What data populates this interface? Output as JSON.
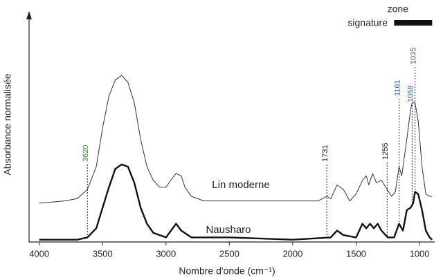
{
  "chart_data": {
    "type": "line",
    "xlabel": "Nombre d'onde (cm⁻¹)",
    "ylabel": "Absorbance normalisée",
    "xlim": [
      4080,
      880
    ],
    "xticks": [
      4000,
      3500,
      3000,
      2500,
      2000,
      1500,
      1000
    ],
    "ylim": [
      0,
      1
    ],
    "x_reversed": true,
    "series": [
      {
        "name": "Lin moderne",
        "color": "#333333",
        "x": [
          4000,
          3800,
          3700,
          3620,
          3550,
          3500,
          3450,
          3400,
          3350,
          3300,
          3250,
          3200,
          3150,
          3100,
          3050,
          3000,
          2950,
          2920,
          2880,
          2850,
          2800,
          2700,
          2500,
          2000,
          1800,
          1731,
          1700,
          1650,
          1600,
          1550,
          1500,
          1450,
          1420,
          1400,
          1370,
          1340,
          1300,
          1255,
          1220,
          1190,
          1161,
          1140,
          1100,
          1070,
          1058,
          1035,
          1010,
          980,
          950,
          920,
          900
        ],
        "values": [
          0.17,
          0.18,
          0.19,
          0.23,
          0.33,
          0.5,
          0.64,
          0.71,
          0.73,
          0.7,
          0.61,
          0.45,
          0.33,
          0.27,
          0.24,
          0.24,
          0.28,
          0.3,
          0.29,
          0.24,
          0.2,
          0.18,
          0.18,
          0.18,
          0.18,
          0.2,
          0.19,
          0.25,
          0.23,
          0.18,
          0.21,
          0.27,
          0.29,
          0.25,
          0.3,
          0.26,
          0.27,
          0.23,
          0.2,
          0.22,
          0.33,
          0.29,
          0.45,
          0.58,
          0.61,
          0.61,
          0.53,
          0.33,
          0.21,
          0.2,
          0.2
        ]
      },
      {
        "name": "Nausharo",
        "color": "#111111",
        "x": [
          4000,
          3700,
          3620,
          3550,
          3500,
          3450,
          3400,
          3350,
          3300,
          3250,
          3200,
          3150,
          3100,
          3000,
          2920,
          2880,
          2800,
          2500,
          2000,
          1700,
          1650,
          1600,
          1500,
          1450,
          1420,
          1390,
          1360,
          1330,
          1300,
          1250,
          1200,
          1161,
          1130,
          1100,
          1070,
          1050,
          1035,
          1010,
          980,
          950,
          920,
          900
        ],
        "values": [
          0.01,
          0.01,
          0.02,
          0.06,
          0.15,
          0.24,
          0.32,
          0.34,
          0.33,
          0.26,
          0.15,
          0.08,
          0.04,
          0.02,
          0.08,
          0.05,
          0.02,
          0.02,
          0.01,
          0.02,
          0.05,
          0.03,
          0.02,
          0.08,
          0.06,
          0.08,
          0.06,
          0.08,
          0.05,
          0.02,
          0.02,
          0.08,
          0.05,
          0.14,
          0.15,
          0.17,
          0.22,
          0.21,
          0.14,
          0.05,
          0.02,
          0.01
        ]
      }
    ],
    "peaks": [
      {
        "x": 3620,
        "color": "#3a8a40"
      },
      {
        "x": 1731,
        "color": "#222222"
      },
      {
        "x": 1255,
        "color": "#222222"
      },
      {
        "x": 1161,
        "color": "#2a5a9a"
      },
      {
        "x": 1058,
        "color": "#2a5a9a"
      },
      {
        "x": 1035,
        "color": "#2a5a9a"
      }
    ],
    "zone_label": [
      "zone",
      "signature"
    ],
    "zone_range": [
      1200,
      900
    ]
  }
}
